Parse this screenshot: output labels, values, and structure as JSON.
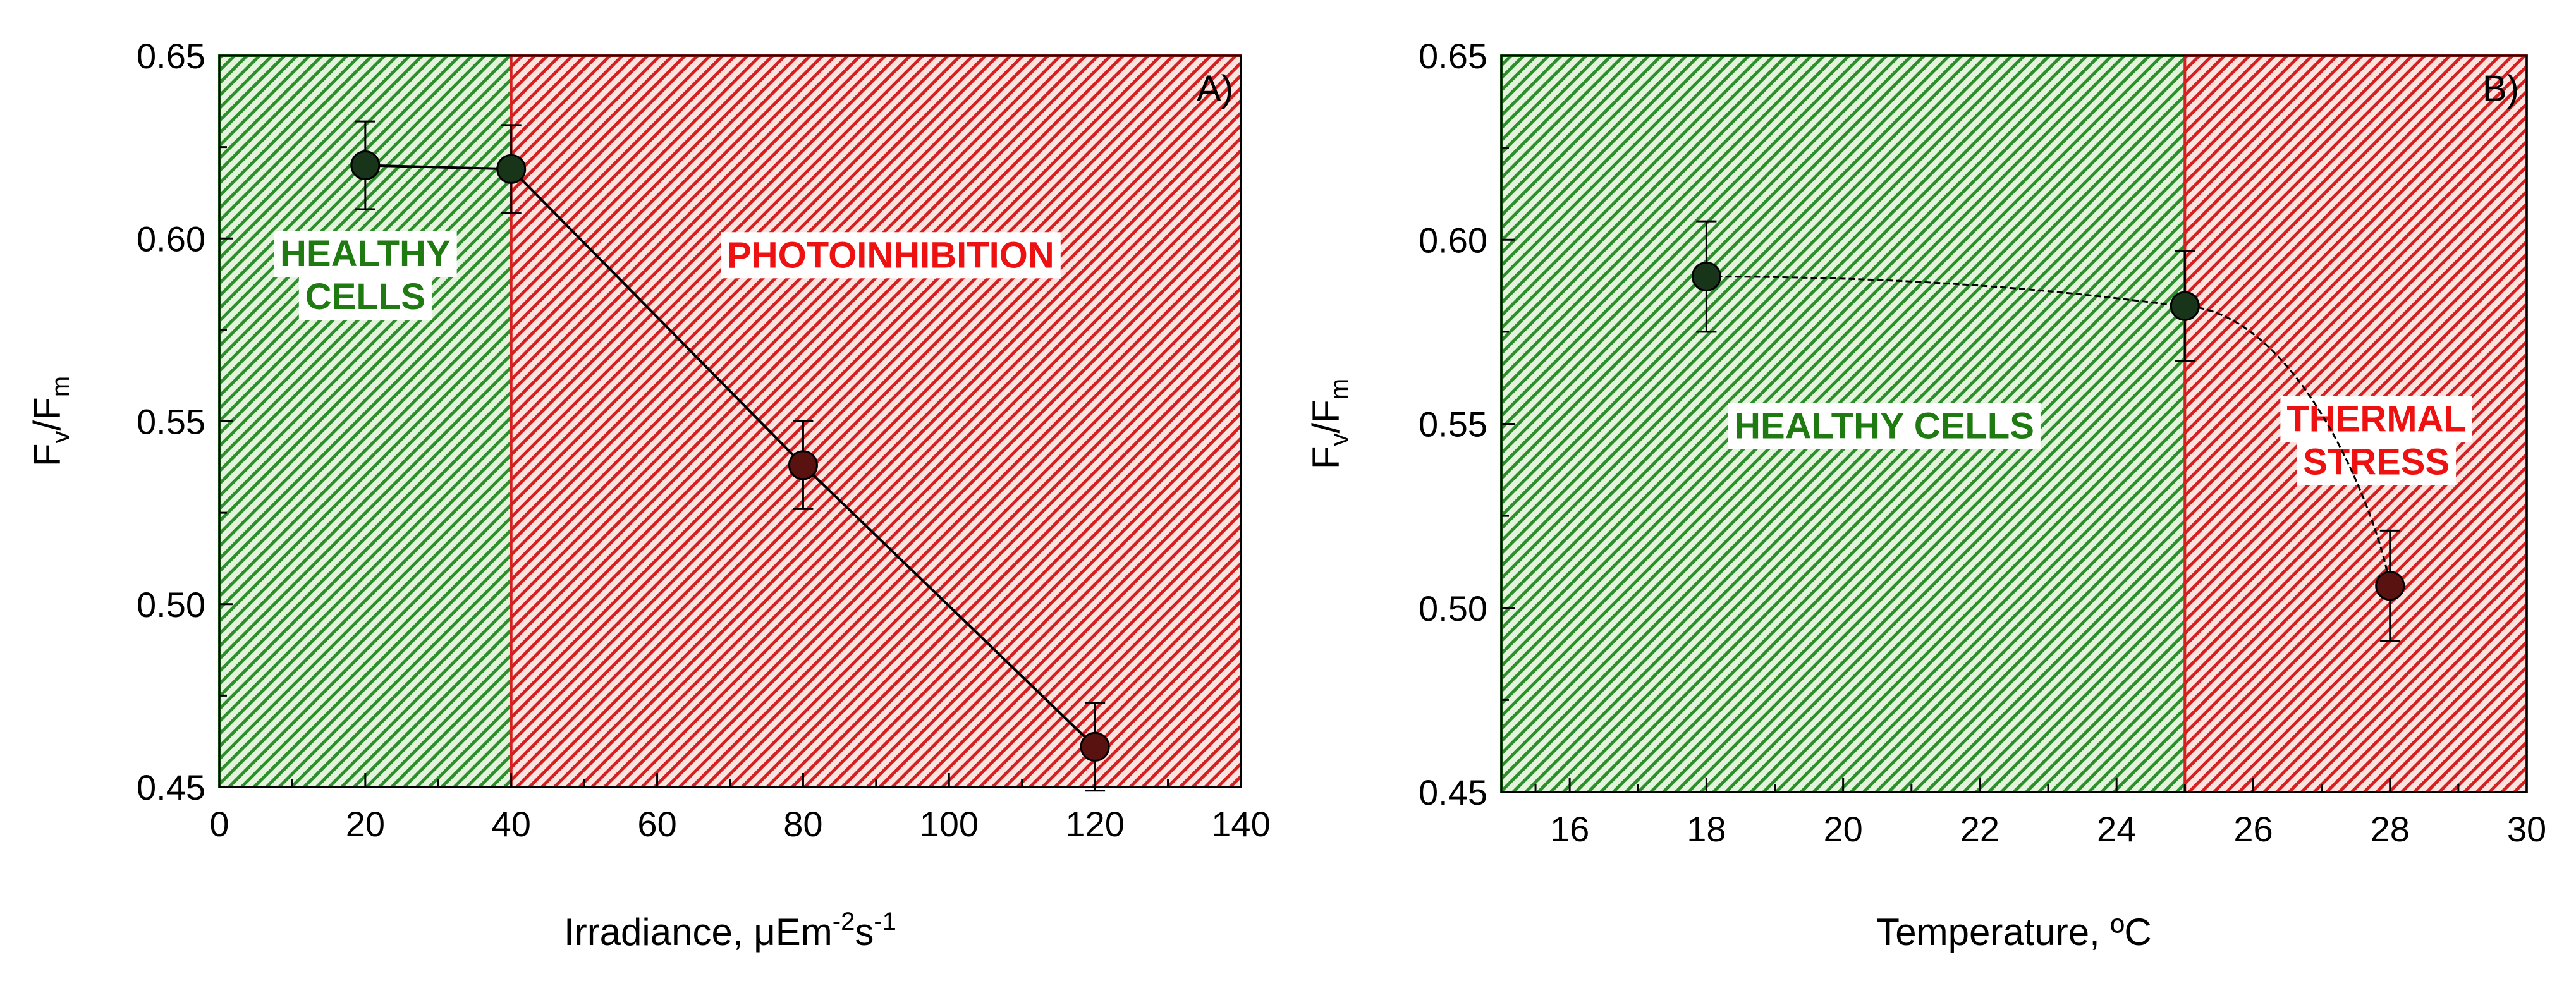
{
  "chart_data": [
    {
      "type": "line",
      "panel_label": "A)",
      "xlabel_main": "Irradiance, ",
      "xlabel_mu": "μ",
      "xlabel_em": "Em",
      "xlabel_sup1": "-2",
      "xlabel_s": "s",
      "xlabel_sup2": "-1",
      "ylabel_main": "F",
      "ylabel_sub1": "v",
      "ylabel_slash": "/F",
      "ylabel_sub2": "m",
      "xlim": [
        0,
        140
      ],
      "ylim": [
        0.45,
        0.65
      ],
      "xticks": [
        0,
        20,
        40,
        60,
        80,
        100,
        120,
        140
      ],
      "yticks": [
        0.45,
        0.5,
        0.55,
        0.6,
        0.65
      ],
      "xticks_labels": [
        "0",
        "20",
        "40",
        "60",
        "80",
        "100",
        "120",
        "140"
      ],
      "yticks_labels": [
        "0.45",
        "0.50",
        "0.55",
        "0.60",
        "0.65"
      ],
      "regions": [
        {
          "x0": 0,
          "x1": 40,
          "color": "#1f8a1f",
          "fill": "#ddf0d6",
          "label_lines": [
            "HEALTHY",
            "CELLS"
          ],
          "label_color": "#1f7a12",
          "label_x": 20,
          "label_y": 0.59
        },
        {
          "x0": 40,
          "x1": 140,
          "color": "#d61f1f",
          "fill": "#f7d9d6",
          "label_lines": [
            "PHOTOINHIBITION"
          ],
          "label_color": "#ee1111",
          "label_x": 92,
          "label_y": 0.5955
        }
      ],
      "series": [
        {
          "x": [
            20,
            40,
            80,
            120
          ],
          "y": [
            0.62,
            0.619,
            0.538,
            0.461
          ],
          "yerr": [
            0.012,
            0.012,
            0.012,
            0.012
          ],
          "connect": "straight"
        }
      ]
    },
    {
      "type": "line",
      "panel_label": "B)",
      "xlabel_main": "Temperature, ºC",
      "ylabel_main": "F",
      "ylabel_sub1": "v",
      "ylabel_slash": "/F",
      "ylabel_sub2": "m",
      "xlim": [
        15,
        30
      ],
      "ylim": [
        0.45,
        0.65
      ],
      "xticks": [
        16,
        18,
        20,
        22,
        24,
        26,
        28,
        30
      ],
      "yticks": [
        0.45,
        0.5,
        0.55,
        0.6,
        0.65
      ],
      "xticks_labels": [
        "16",
        "18",
        "20",
        "22",
        "24",
        "26",
        "28",
        "30"
      ],
      "yticks_labels": [
        "0.45",
        "0.50",
        "0.55",
        "0.60",
        "0.65"
      ],
      "regions": [
        {
          "x0": 15,
          "x1": 25,
          "color": "#1f8a1f",
          "fill": "#ddf0d6",
          "label_lines": [
            "HEALTHY CELLS"
          ],
          "label_color": "#1f7a12",
          "label_x": 20.6,
          "label_y": 0.5495
        },
        {
          "x0": 25,
          "x1": 30,
          "color": "#d61f1f",
          "fill": "#f7d9d6",
          "label_lines": [
            "THERMAL",
            "STRESS"
          ],
          "label_color": "#ee1111",
          "label_x": 27.8,
          "label_y": 0.5455
        }
      ],
      "series": [
        {
          "x": [
            18,
            25,
            28
          ],
          "y": [
            0.59,
            0.582,
            0.506
          ],
          "yerr": [
            0.015,
            0.015,
            0.015
          ],
          "connect": "curve"
        }
      ]
    }
  ]
}
